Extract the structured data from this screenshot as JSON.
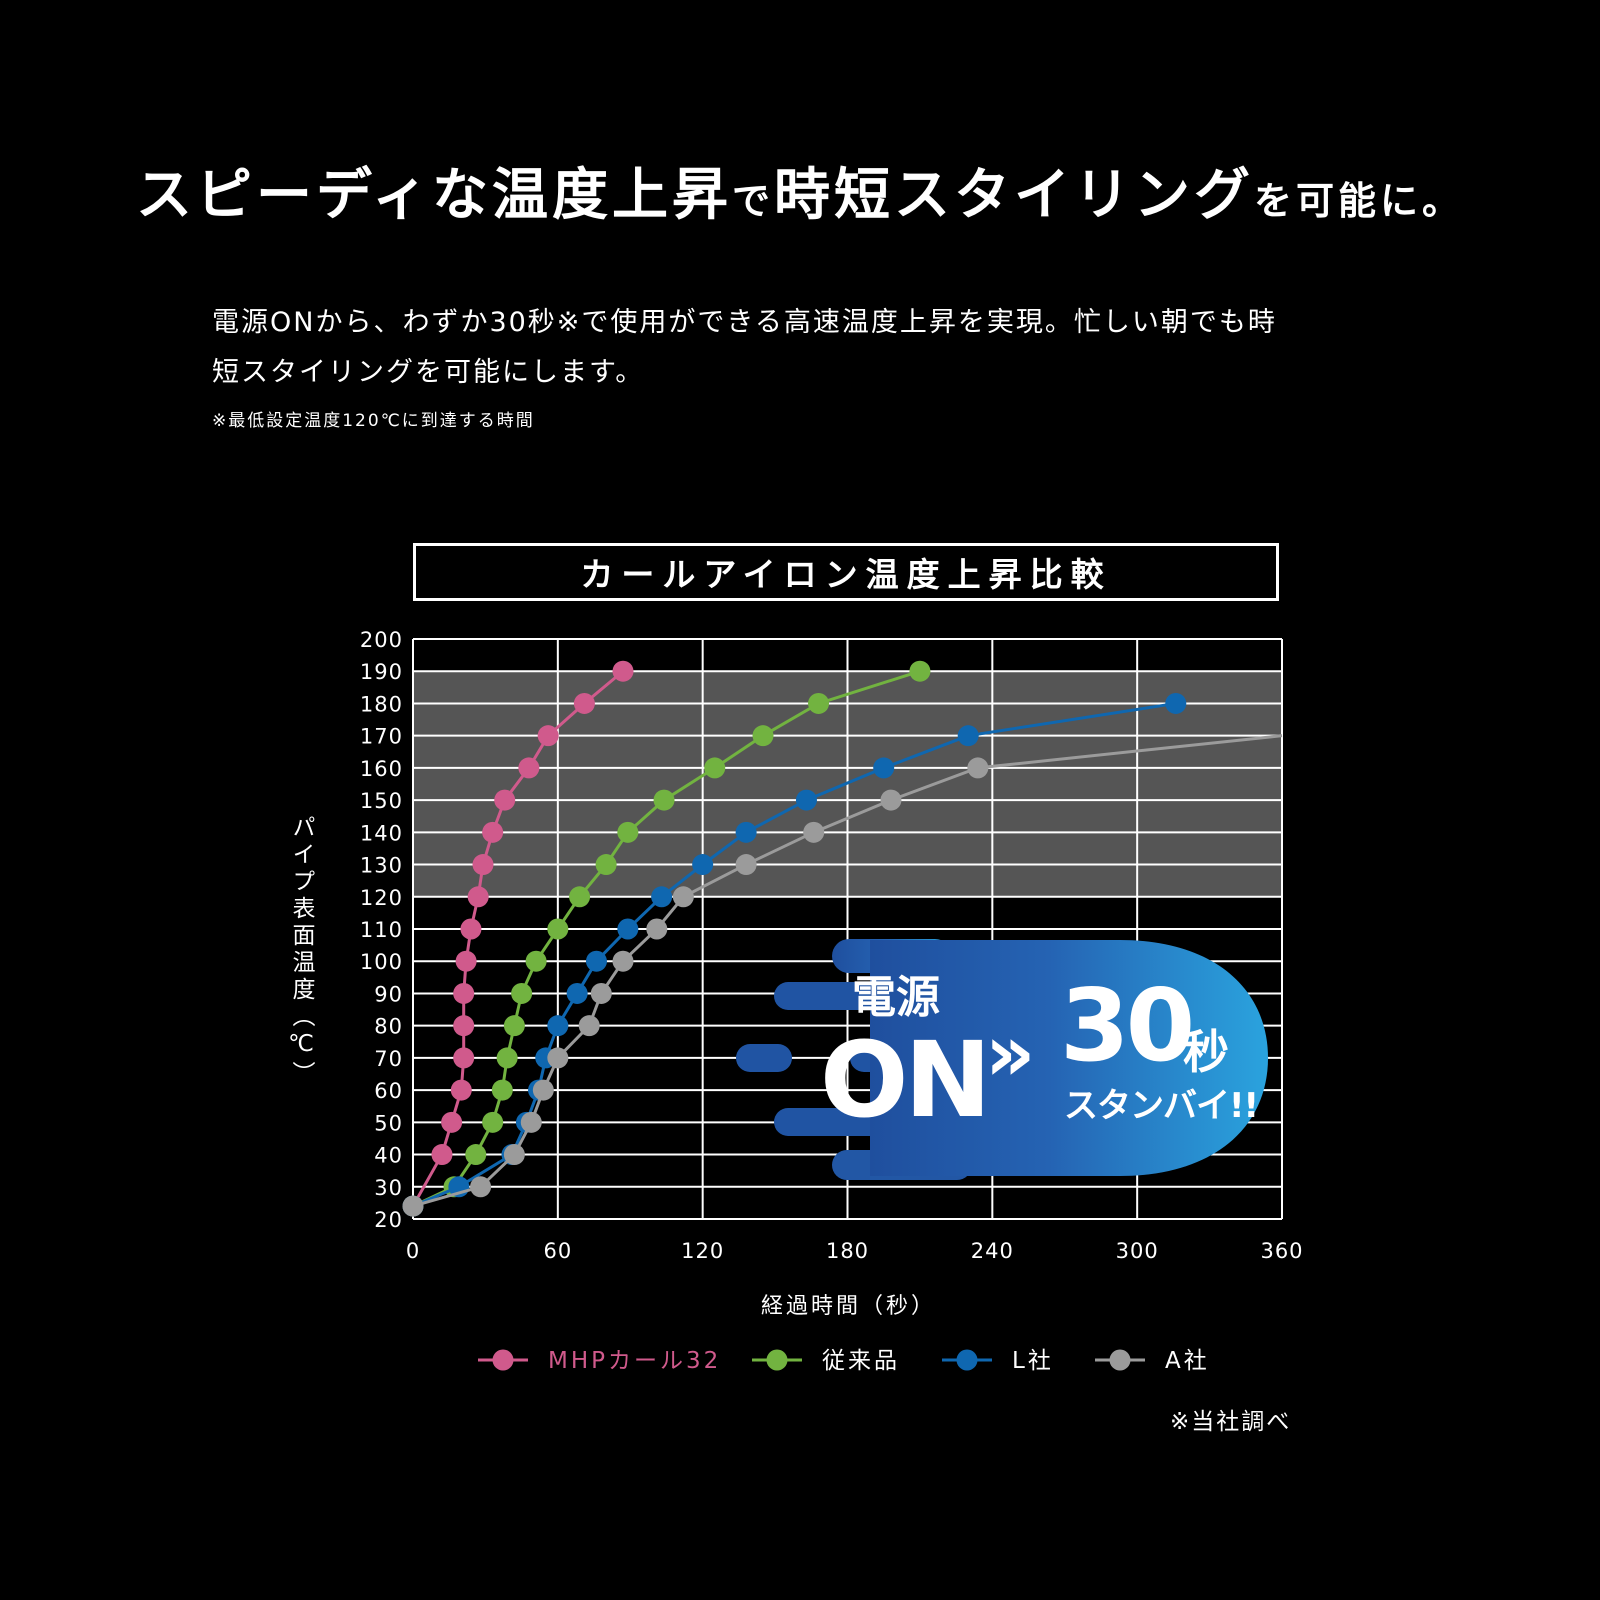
{
  "headline": {
    "part1": "スピーディな温度上昇",
    "part2": "で",
    "part3": "時短スタイリング",
    "part4": "を可能に。"
  },
  "lead": {
    "line1": "電源ONから、わずか30秒※で使用ができる高速温度上昇を実現。忙しい朝でも時",
    "line2": "短スタイリングを可能にします。"
  },
  "footnote": "※最低設定温度120℃に到達する時間",
  "badge": {
    "line1": "電源",
    "on": "ON",
    "arrow": "»",
    "seconds": "30",
    "seconds_unit": "秒",
    "standby": "スタンバイ!!"
  },
  "source_note": "※当社調べ",
  "colors": {
    "background": "#000000",
    "plot_upper_band": "#555555",
    "badge_dark": "#2257a5",
    "badge_light": "#2ba0dc"
  },
  "chart_data": {
    "type": "line",
    "title": "カールアイロン温度上昇比較",
    "xlabel": "経過時間（秒）",
    "ylabel": "パイプ表面温度（℃）",
    "xlim": [
      0,
      360
    ],
    "ylim": [
      20,
      200
    ],
    "xticks": [
      0,
      60,
      120,
      180,
      240,
      300,
      360
    ],
    "yticks": [
      20,
      30,
      40,
      50,
      60,
      70,
      80,
      90,
      100,
      110,
      120,
      130,
      140,
      150,
      160,
      170,
      180,
      190,
      200
    ],
    "shaded_band": {
      "from": 120,
      "to": 190
    },
    "grid": true,
    "legend_position": "bottom",
    "series": [
      {
        "name": "MHPカール32",
        "color": "#d05a8c",
        "points": [
          [
            0,
            24
          ],
          [
            12,
            40
          ],
          [
            16,
            50
          ],
          [
            20,
            60
          ],
          [
            21,
            70
          ],
          [
            21,
            80
          ],
          [
            21,
            90
          ],
          [
            22,
            100
          ],
          [
            24,
            110
          ],
          [
            27,
            120
          ],
          [
            29,
            130
          ],
          [
            33,
            140
          ],
          [
            38,
            150
          ],
          [
            48,
            160
          ],
          [
            56,
            170
          ],
          [
            71,
            180
          ],
          [
            87,
            190
          ]
        ]
      },
      {
        "name": "従来品",
        "color": "#72b340",
        "points": [
          [
            0,
            24
          ],
          [
            17,
            30
          ],
          [
            26,
            40
          ],
          [
            33,
            50
          ],
          [
            37,
            60
          ],
          [
            39,
            70
          ],
          [
            42,
            80
          ],
          [
            45,
            90
          ],
          [
            51,
            100
          ],
          [
            60,
            110
          ],
          [
            69,
            120
          ],
          [
            80,
            130
          ],
          [
            89,
            140
          ],
          [
            104,
            150
          ],
          [
            125,
            160
          ],
          [
            145,
            170
          ],
          [
            168,
            180
          ],
          [
            210,
            190
          ]
        ]
      },
      {
        "name": "L社",
        "color": "#0f67b0",
        "points": [
          [
            0,
            24
          ],
          [
            19,
            30
          ],
          [
            41,
            40
          ],
          [
            47,
            50
          ],
          [
            52,
            60
          ],
          [
            55,
            70
          ],
          [
            60,
            80
          ],
          [
            68,
            90
          ],
          [
            76,
            100
          ],
          [
            89,
            110
          ],
          [
            103,
            120
          ],
          [
            120,
            130
          ],
          [
            138,
            140
          ],
          [
            163,
            150
          ],
          [
            195,
            160
          ],
          [
            230,
            170
          ],
          [
            316,
            180
          ]
        ]
      },
      {
        "name": "A社",
        "color": "#9b9b9b",
        "points": [
          [
            0,
            24
          ],
          [
            28,
            30
          ],
          [
            42,
            40
          ],
          [
            49,
            50
          ],
          [
            54,
            60
          ],
          [
            60,
            70
          ],
          [
            73,
            80
          ],
          [
            78,
            90
          ],
          [
            87,
            100
          ],
          [
            101,
            110
          ],
          [
            112,
            120
          ],
          [
            138,
            130
          ],
          [
            166,
            140
          ],
          [
            198,
            150
          ],
          [
            234,
            160
          ],
          [
            360,
            170
          ]
        ]
      }
    ]
  }
}
